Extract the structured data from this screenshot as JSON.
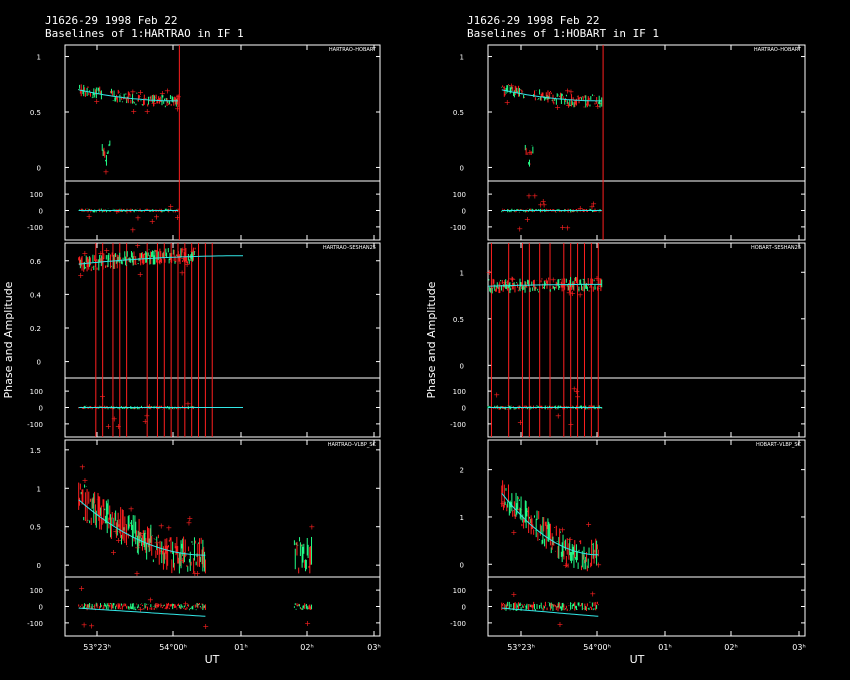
{
  "colors": {
    "background": "#000000",
    "frame": "#ffffff",
    "data_red": "#ff2020",
    "data_green": "#22ff88",
    "model": "#33e8e8"
  },
  "chart_data": [
    {
      "type": "scatter",
      "title": "J1626-29  1998 Feb 22",
      "subtitle": "Baselines of 1:HARTRAO in IF 1",
      "ylabel": "Phase and Amplitude",
      "xlabel": "UT",
      "x_ticks": [
        "53°23ʰ",
        "54°00ʰ",
        "01ʰ",
        "02ʰ",
        "03ʰ"
      ],
      "x_range_hours": [
        22.4,
        27.0
      ],
      "panels": [
        {
          "baseline": "HARTRAO–HOBART",
          "amp_ticks": [
            "0",
            "0.5",
            "1"
          ],
          "amp_range": [
            -0.05,
            1.05
          ],
          "phase_ticks": [
            "100",
            "0",
            "-100"
          ],
          "data_span_hours": [
            22.6,
            24.05
          ],
          "amp_level": 0.65,
          "amp_scatter": 0.06,
          "dip": {
            "at": 23.0,
            "to": 0.05
          },
          "model_amp": [
            0.7,
            0.6
          ],
          "flag_lines": [
            24.07
          ]
        },
        {
          "baseline": "HARTRAO–SESHAN25",
          "amp_ticks": [
            "0",
            "0.2",
            "0.4",
            "0.6"
          ],
          "amp_range": [
            -0.05,
            0.67
          ],
          "phase_ticks": [
            "100",
            "0",
            "-100"
          ],
          "data_span_hours": [
            22.6,
            24.3
          ],
          "amp_level": 0.55,
          "amp_scatter": 0.05,
          "model_amp": [
            0.58,
            0.63
          ],
          "model_end": 25.0,
          "flag_lines": [
            22.85,
            22.95,
            23.1,
            23.2,
            23.3,
            23.6,
            23.75,
            23.85,
            23.95,
            24.05,
            24.15,
            24.25,
            24.35,
            24.45,
            24.55
          ]
        },
        {
          "baseline": "HARTRAO–VLBP_SC",
          "amp_ticks": [
            "0",
            "0.5",
            "1",
            "1.5"
          ],
          "amp_range": [
            -0.05,
            1.55
          ],
          "phase_ticks": [
            "100",
            "0",
            "-100"
          ],
          "data_span_hours": [
            22.6,
            24.45
          ],
          "amp_level": 0.4,
          "amp_scatter": 0.25,
          "model_amp": [
            0.85,
            0.13
          ],
          "extra_span": [
            25.75,
            26.0
          ]
        }
      ]
    },
    {
      "type": "scatter",
      "title": "J1626-29  1998 Feb 22",
      "subtitle": "Baselines of 1:HOBART in IF 1",
      "ylabel": "Phase and Amplitude",
      "xlabel": "UT",
      "x_ticks": [
        "53°23ʰ",
        "54°00ʰ",
        "01ʰ",
        "02ʰ",
        "03ʰ"
      ],
      "x_range_hours": [
        22.4,
        27.0
      ],
      "panels": [
        {
          "baseline": "HARTRAO–HOBART",
          "amp_ticks": [
            "0",
            "0.5",
            "1"
          ],
          "amp_range": [
            -0.05,
            1.05
          ],
          "phase_ticks": [
            "100",
            "0",
            "-100"
          ],
          "data_span_hours": [
            22.6,
            24.05
          ],
          "amp_level": 0.65,
          "amp_scatter": 0.06,
          "dip": {
            "at": 23.0,
            "to": 0.05
          },
          "model_amp": [
            0.7,
            0.6
          ],
          "flag_lines": [
            24.07
          ]
        },
        {
          "baseline": "HOBART–SESHAN25",
          "amp_ticks": [
            "0",
            "0.5",
            "1"
          ],
          "amp_range": [
            -0.05,
            1.25
          ],
          "phase_ticks": [
            "100",
            "0",
            "-100"
          ],
          "data_span_hours": [
            22.4,
            24.05
          ],
          "amp_level": 0.88,
          "amp_scatter": 0.08,
          "model_amp": [
            0.85,
            0.87
          ],
          "flag_lines": [
            22.45,
            22.7,
            22.9,
            23.0,
            23.15,
            23.3,
            23.5,
            23.6,
            23.7,
            23.8,
            23.9,
            24.0
          ]
        },
        {
          "baseline": "HOBART–VLBP_SC",
          "amp_ticks": [
            "0",
            "1",
            "2"
          ],
          "amp_range": [
            -0.1,
            2.5
          ],
          "phase_ticks": [
            "100",
            "0",
            "-100"
          ],
          "data_span_hours": [
            22.6,
            24.0
          ],
          "amp_level": 1.0,
          "amp_scatter": 0.35,
          "model_amp": [
            1.5,
            0.2
          ]
        }
      ]
    }
  ]
}
